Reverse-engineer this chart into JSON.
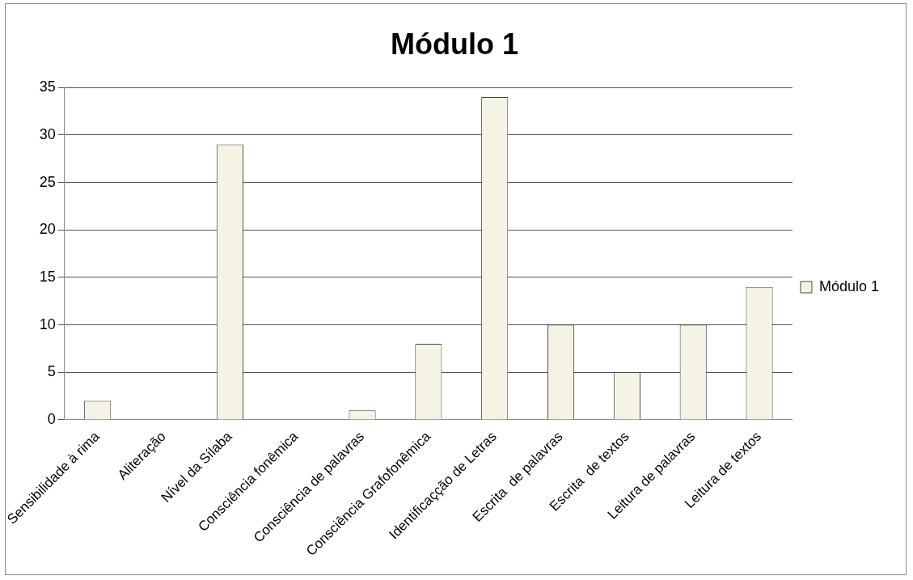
{
  "chart_data": {
    "type": "bar",
    "title": "Módulo 1",
    "categories": [
      "Sensibilidade à rima",
      "Aliteração",
      "Nível da Sílaba",
      "Consciência fonêmica",
      "Consciência de palavras",
      "Consciência Grafofonêmica",
      "Identificaçção de Letras",
      "Escrita  de palavras",
      "Escrita  de textos",
      "Leitura de palavras",
      "Leitura de textos"
    ],
    "series": [
      {
        "name": "Módulo 1",
        "color": "#f5f3e4",
        "values": [
          2,
          0,
          29,
          0,
          1,
          8,
          34,
          10,
          5,
          10,
          14
        ]
      }
    ],
    "ylim": [
      0,
      35
    ],
    "yticks": [
      0,
      5,
      10,
      15,
      20,
      25,
      30,
      35
    ],
    "grid": "y",
    "legend": "right"
  }
}
